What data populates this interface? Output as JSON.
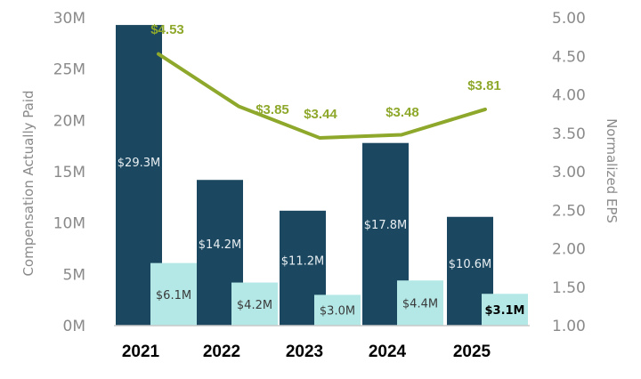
{
  "chart_data": {
    "type": "bar",
    "categories": [
      "2021",
      "2022",
      "2023",
      "2024",
      "2025"
    ],
    "series": [
      {
        "name": "Compensation Actually Paid (dark bars)",
        "values": [
          29.3,
          14.2,
          11.2,
          17.8,
          10.6
        ],
        "labels": [
          "$29.3M",
          "$14.2M",
          "$11.2M",
          "$17.8M",
          "$10.6M"
        ],
        "color": "#1b4860",
        "label_color": "#e8eef2",
        "axis": "left"
      },
      {
        "name": "Compensation Actually Paid (light bars)",
        "values": [
          6.1,
          4.2,
          3.0,
          4.4,
          3.1
        ],
        "labels": [
          "$6.1M",
          "$4.2M",
          "$3.0M",
          "$4.4M",
          "$3.1M"
        ],
        "color": "#b3e8e6",
        "label_color": "#3a3a3a",
        "highlight_last": true,
        "axis": "left"
      },
      {
        "name": "Normalized EPS",
        "type": "line",
        "values": [
          4.53,
          3.85,
          3.44,
          3.48,
          3.81
        ],
        "labels": [
          "$4.53",
          "$3.85",
          "$3.44",
          "$3.48",
          "$3.81"
        ],
        "color": "#8ea82c",
        "axis": "right"
      }
    ],
    "left_axis": {
      "title": "Compensation Actually Paid",
      "ylim": [
        0,
        30
      ],
      "ticks": [
        0,
        5,
        10,
        15,
        20,
        25,
        30
      ],
      "tick_labels": [
        "0M",
        "5M",
        "10M",
        "15M",
        "20M",
        "25M",
        "30M"
      ]
    },
    "right_axis": {
      "title": "Normalized EPS",
      "ylim": [
        1.0,
        5.0
      ],
      "ticks": [
        1.0,
        1.5,
        2.0,
        2.5,
        3.0,
        3.5,
        4.0,
        4.5,
        5.0
      ],
      "tick_labels": [
        "1.00",
        "1.50",
        "2.00",
        "2.50",
        "3.00",
        "3.50",
        "4.00",
        "4.50",
        "5.00"
      ]
    },
    "grid": false,
    "colors": {
      "axis_line": "#c8c8c8",
      "tick_text": "#8a8a8a",
      "category_text": "#000000"
    }
  }
}
